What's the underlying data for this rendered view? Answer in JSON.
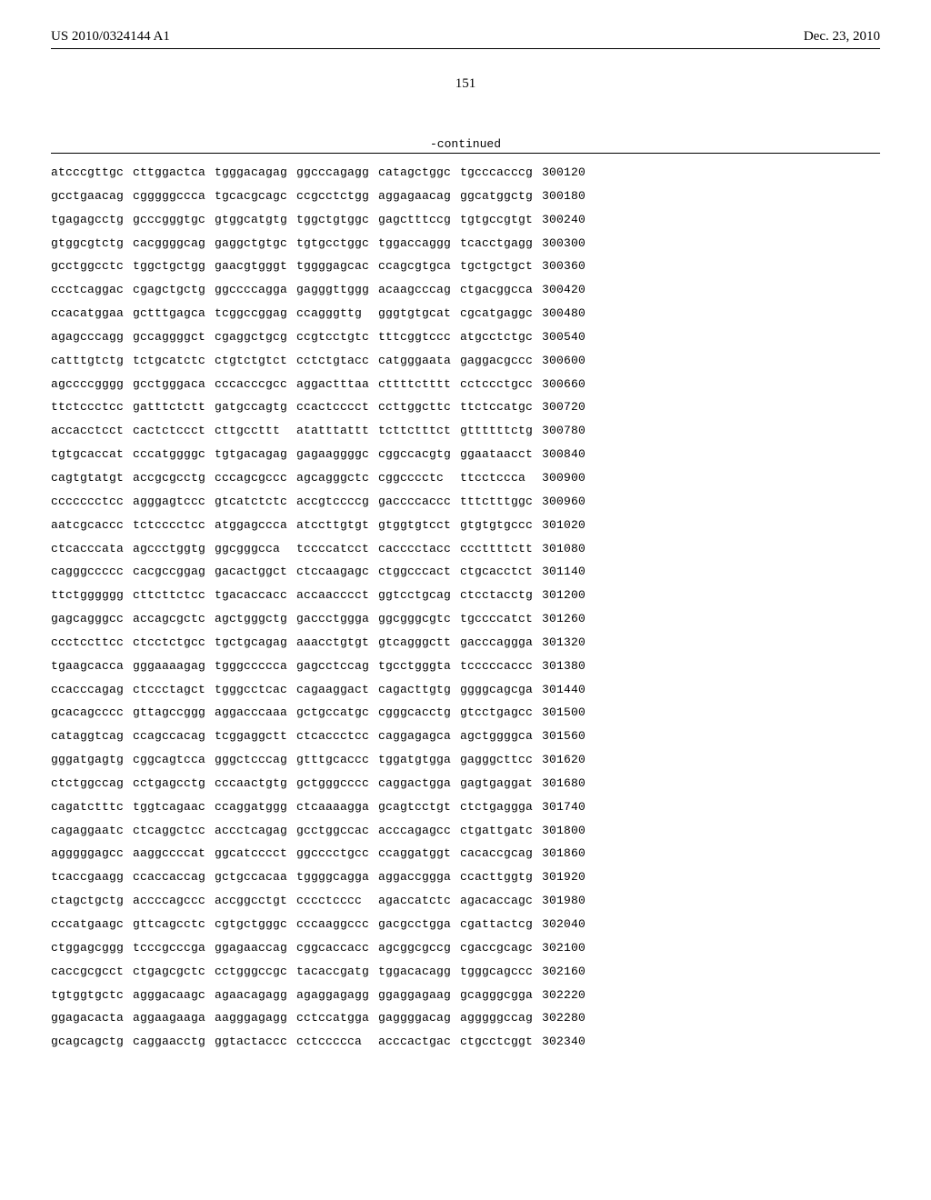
{
  "header": {
    "left": "US 2010/0324144 A1",
    "right": "Dec. 23, 2010"
  },
  "page_number": "151",
  "continued_label": "-continued",
  "sequence": {
    "type": "table",
    "font_family": "Courier New",
    "font_size_pt": 10,
    "text_color": "#000000",
    "background_color": "#ffffff",
    "columns_per_group": 10,
    "groups_per_row": 6,
    "rows": [
      {
        "groups": [
          "atcccgttgc",
          "cttggactca",
          "tgggacagag",
          "ggcccagagg",
          "catagctggc",
          "tgcccacccg"
        ],
        "num": "300120"
      },
      {
        "groups": [
          "gcctgaacag",
          "cgggggccca",
          "tgcacgcagc",
          "ccgcctctgg",
          "aggagaacag",
          "ggcatggctg"
        ],
        "num": "300180"
      },
      {
        "groups": [
          "tgagagcctg",
          "gcccgggtgc",
          "gtggcatgtg",
          "tggctgtggc",
          "gagctttccg",
          "tgtgccgtgt"
        ],
        "num": "300240"
      },
      {
        "groups": [
          "gtggcgtctg",
          "cacggggcag",
          "gaggctgtgc",
          "tgtgcctggc",
          "tggaccaggg",
          "tcacctgagg"
        ],
        "num": "300300"
      },
      {
        "groups": [
          "gcctggcctc",
          "tggctgctgg",
          "gaacgtgggt",
          "tggggagcac",
          "ccagcgtgca",
          "tgctgctgct"
        ],
        "num": "300360"
      },
      {
        "groups": [
          "ccctcaggac",
          "cgagctgctg",
          "ggccccagga",
          "gagggttggg",
          "acaagcccag",
          "ctgacggcca"
        ],
        "num": "300420"
      },
      {
        "groups": [
          "ccacatggaa",
          "gctttgagca",
          "tcggccggag",
          "ccagggttg",
          "gggtgtgcat",
          "cgcatgaggc"
        ],
        "num": "300480"
      },
      {
        "groups": [
          "agagcccagg",
          "gccaggggct",
          "cgaggctgcg",
          "ccgtcctgtc",
          "tttcggtccc",
          "atgcctctgc"
        ],
        "num": "300540"
      },
      {
        "groups": [
          "catttgtctg",
          "tctgcatctc",
          "ctgtctgtct",
          "cctctgtacc",
          "catgggaata",
          "gaggacgccc"
        ],
        "num": "300600"
      },
      {
        "groups": [
          "agccccgggg",
          "gcctgggaca",
          "cccacccgcc",
          "aggactttaa",
          "cttttctttt",
          "cctccctgcc"
        ],
        "num": "300660"
      },
      {
        "groups": [
          "ttctccctcc",
          "gatttctctt",
          "gatgccagtg",
          "ccactcccct",
          "ccttggcttc",
          "ttctccatgc"
        ],
        "num": "300720"
      },
      {
        "groups": [
          "accacctcct",
          "cactctccct",
          "cttgccttt",
          "atatttattt",
          "tcttctttct",
          "gttttttctg"
        ],
        "num": "300780"
      },
      {
        "groups": [
          "tgtgcaccat",
          "cccatggggc",
          "tgtgacagag",
          "gagaaggggc",
          "cggccacgtg",
          "ggaataacct"
        ],
        "num": "300840"
      },
      {
        "groups": [
          "cagtgtatgt",
          "accgcgcctg",
          "cccagcgccc",
          "agcagggctc",
          "cggcccctc",
          "ttcctccca"
        ],
        "num": "300900"
      },
      {
        "groups": [
          "ccccccctcc",
          "agggagtccc",
          "gtcatctctc",
          "accgtccccg",
          "gaccccaccc",
          "tttctttggc"
        ],
        "num": "300960"
      },
      {
        "groups": [
          "aatcgcaccc",
          "tctcccctcc",
          "atggagccca",
          "atccttgtgt",
          "gtggtgtcct",
          "gtgtgtgccc"
        ],
        "num": "301020"
      },
      {
        "groups": [
          "ctcacccata",
          "agccctggtg",
          "ggcgggcca",
          "tccccatcct",
          "cacccctacc",
          "cccttttctt"
        ],
        "num": "301080"
      },
      {
        "groups": [
          "cagggccccc",
          "cacgccggag",
          "gacactggct",
          "ctccaagagc",
          "ctggcccact",
          "ctgcacctct"
        ],
        "num": "301140"
      },
      {
        "groups": [
          "ttctgggggg",
          "cttcttctcc",
          "tgacaccacc",
          "accaacccct",
          "ggtcctgcag",
          "ctcctacctg"
        ],
        "num": "301200"
      },
      {
        "groups": [
          "gagcagggcc",
          "accagcgctc",
          "agctgggctg",
          "gaccctggga",
          "ggcgggcgtc",
          "tgccccatct"
        ],
        "num": "301260"
      },
      {
        "groups": [
          "ccctccttcc",
          "ctcctctgcc",
          "tgctgcagag",
          "aaacctgtgt",
          "gtcagggctt",
          "gacccaggga"
        ],
        "num": "301320"
      },
      {
        "groups": [
          "tgaagcacca",
          "gggaaaagag",
          "tgggccccca",
          "gagcctccag",
          "tgcctgggta",
          "tcccccaccc"
        ],
        "num": "301380"
      },
      {
        "groups": [
          "ccacccagag",
          "ctccctagct",
          "tgggcctcac",
          "cagaaggact",
          "cagacttgtg",
          "ggggcagcga"
        ],
        "num": "301440"
      },
      {
        "groups": [
          "gcacagcccc",
          "gttagccggg",
          "aggacccaaa",
          "gctgccatgc",
          "cgggcacctg",
          "gtcctgagcc"
        ],
        "num": "301500"
      },
      {
        "groups": [
          "cataggtcag",
          "ccagccacag",
          "tcggaggctt",
          "ctcaccctcc",
          "caggagagca",
          "agctggggca"
        ],
        "num": "301560"
      },
      {
        "groups": [
          "gggatgagtg",
          "cggcagtcca",
          "gggctcccag",
          "gtttgcaccc",
          "tggatgtgga",
          "gagggcttcc"
        ],
        "num": "301620"
      },
      {
        "groups": [
          "ctctggccag",
          "cctgagcctg",
          "cccaactgtg",
          "gctgggcccc",
          "caggactgga",
          "gagtgaggat"
        ],
        "num": "301680"
      },
      {
        "groups": [
          "cagatctttc",
          "tggtcagaac",
          "ccaggatggg",
          "ctcaaaagga",
          "gcagtcctgt",
          "ctctgaggga"
        ],
        "num": "301740"
      },
      {
        "groups": [
          "cagaggaatc",
          "ctcaggctcc",
          "accctcagag",
          "gcctggccac",
          "acccagagcc",
          "ctgattgatc"
        ],
        "num": "301800"
      },
      {
        "groups": [
          "agggggagcc",
          "aaggccccat",
          "ggcatcccct",
          "ggcccctgcc",
          "ccaggatggt",
          "cacaccgcag"
        ],
        "num": "301860"
      },
      {
        "groups": [
          "tcaccgaagg",
          "ccaccaccag",
          "gctgccacaa",
          "tggggcagga",
          "aggaccggga",
          "ccacttggtg"
        ],
        "num": "301920"
      },
      {
        "groups": [
          "ctagctgctg",
          "accccagccc",
          "accggcctgt",
          "cccctcccc",
          "agaccatctc",
          "agacaccagc"
        ],
        "num": "301980"
      },
      {
        "groups": [
          "cccatgaagc",
          "gttcagcctc",
          "cgtgctgggc",
          "cccaaggccc",
          "gacgcctgga",
          "cgattactcg"
        ],
        "num": "302040"
      },
      {
        "groups": [
          "ctggagcggg",
          "tcccgcccga",
          "ggagaaccag",
          "cggcaccacc",
          "agcggcgccg",
          "cgaccgcagc"
        ],
        "num": "302100"
      },
      {
        "groups": [
          "caccgcgcct",
          "ctgagcgctc",
          "cctgggccgc",
          "tacaccgatg",
          "tggacacagg",
          "tgggcagccc"
        ],
        "num": "302160"
      },
      {
        "groups": [
          "tgtggtgctc",
          "agggacaagc",
          "agaacagagg",
          "agaggagagg",
          "ggaggagaag",
          "gcagggcgga"
        ],
        "num": "302220"
      },
      {
        "groups": [
          "ggagacacta",
          "aggaagaaga",
          "aagggagagg",
          "cctccatgga",
          "gaggggacag",
          "agggggccag"
        ],
        "num": "302280"
      },
      {
        "groups": [
          "gcagcagctg",
          "caggaacctg",
          "ggtactaccc",
          "cctccccca",
          "acccactgac",
          "ctgcctcggt"
        ],
        "num": "302340"
      }
    ]
  }
}
